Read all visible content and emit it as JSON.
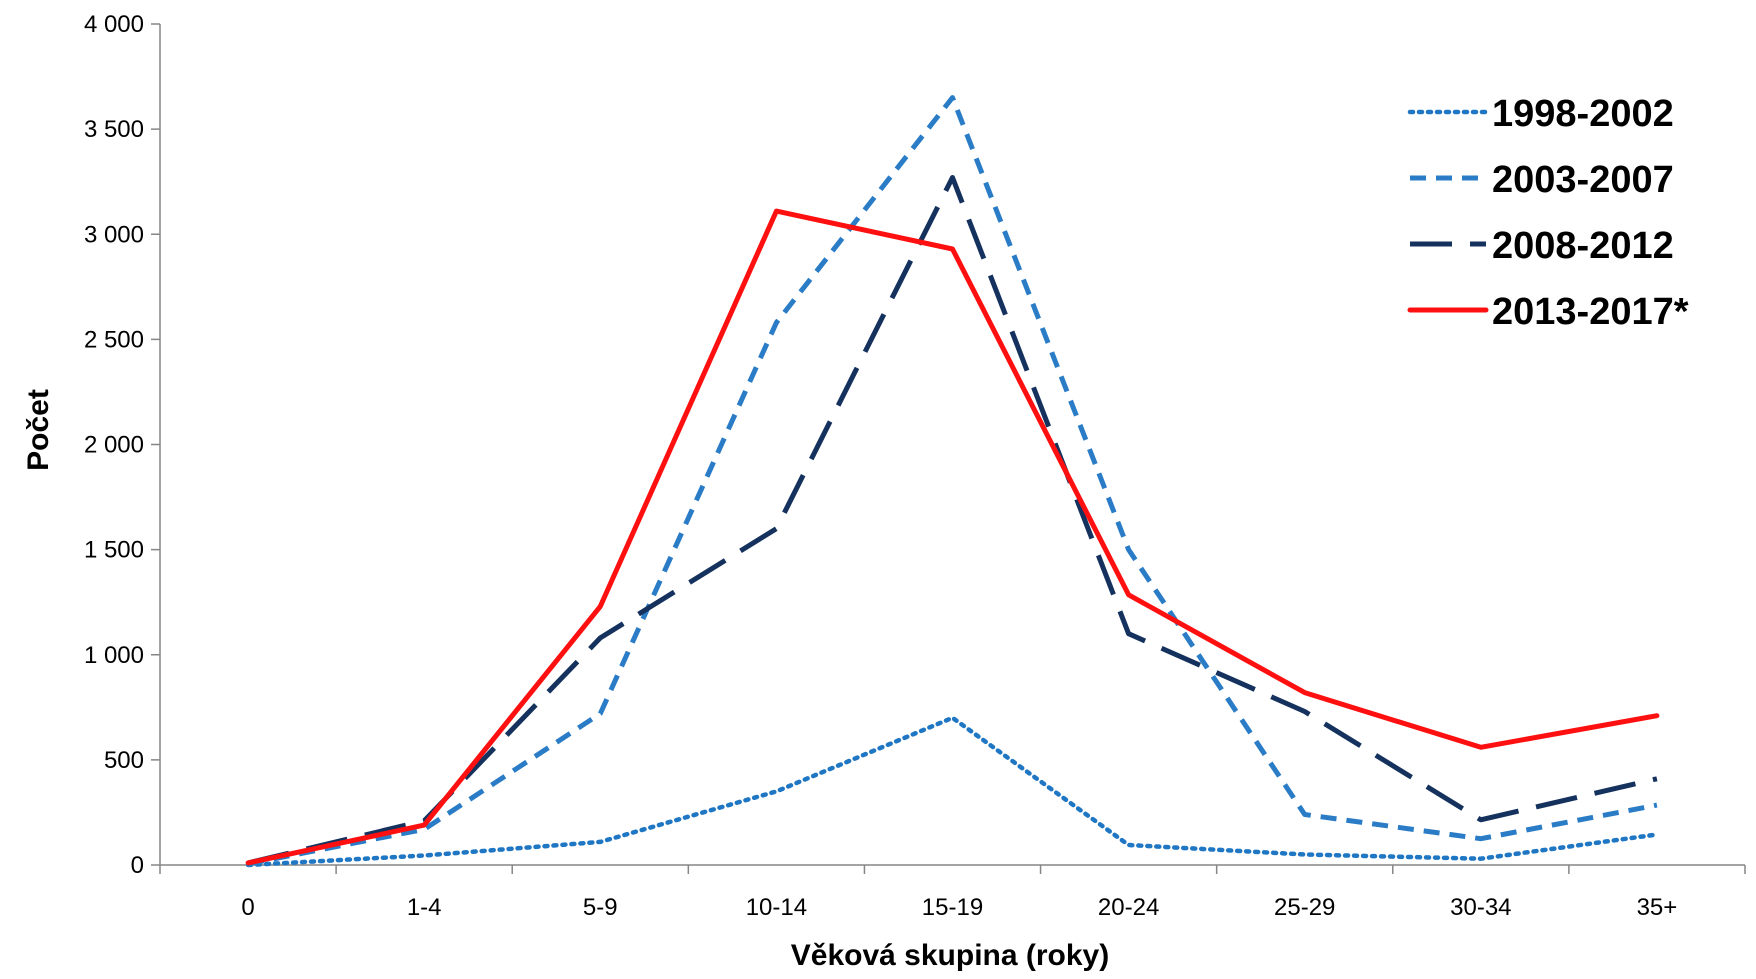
{
  "chart_data": {
    "type": "line",
    "title": "",
    "xlabel": "Věková skupina (roky)",
    "ylabel": "Počet",
    "categories": [
      "0",
      "1-4",
      "5-9",
      "10-14",
      "15-19",
      "20-24",
      "25-29",
      "30-34",
      "35+"
    ],
    "ylim": [
      0,
      4000
    ],
    "yticks": [
      0,
      500,
      1000,
      1500,
      2000,
      2500,
      3000,
      3500,
      4000
    ],
    "ytick_labels": [
      "0",
      "500",
      "1 000",
      "1 500",
      "2 000",
      "2 500",
      "3 000",
      "3 500",
      "4 000"
    ],
    "grid": false,
    "legend_position": "top-right",
    "series": [
      {
        "name": "1998-2002",
        "color": "#1f77c4",
        "dash": "dotted",
        "values": [
          0,
          45,
          110,
          350,
          700,
          95,
          50,
          30,
          145
        ]
      },
      {
        "name": "2003-2007",
        "color": "#2a7cc6",
        "dash": "dashed",
        "values": [
          5,
          170,
          720,
          2580,
          3650,
          1500,
          240,
          125,
          285
        ]
      },
      {
        "name": "2008-2012",
        "color": "#15325e",
        "dash": "longdash",
        "values": [
          10,
          210,
          1080,
          1600,
          3270,
          1100,
          730,
          215,
          410
        ]
      },
      {
        "name": "2013-2017*",
        "color": "#ff1010",
        "dash": "solid",
        "values": [
          10,
          190,
          1230,
          3110,
          2930,
          1285,
          820,
          560,
          710
        ]
      }
    ]
  }
}
